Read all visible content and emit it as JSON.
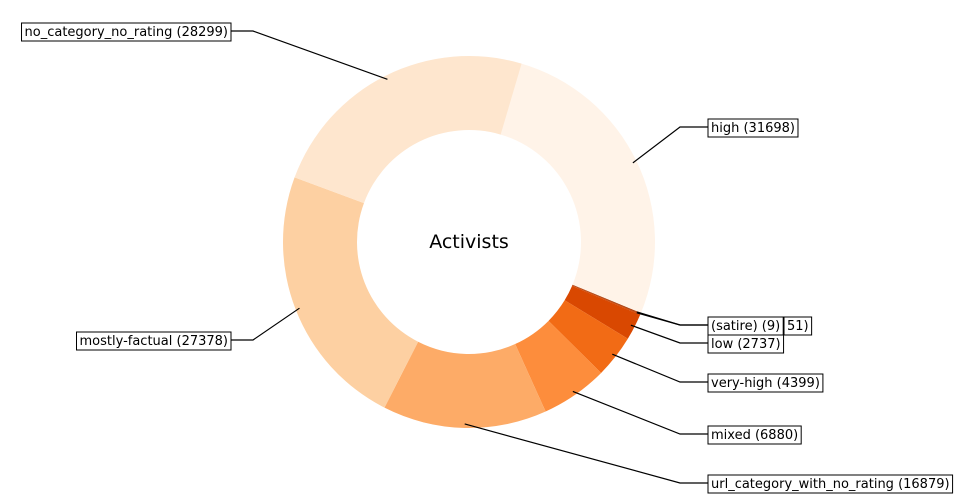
{
  "chart_data": {
    "type": "pie",
    "style": "donut",
    "title": "Activists",
    "slices": [
      {
        "label": "high (31698)",
        "value": 31698,
        "color": "#fff3e8"
      },
      {
        "label": "(satire) (9)",
        "value": 9,
        "color": "#a53603"
      },
      {
        "label": "51)",
        "value": 51,
        "color": "#c44103"
      },
      {
        "label": "low (2737)",
        "value": 2737,
        "color": "#d94801"
      },
      {
        "label": "very-high (4399)",
        "value": 4399,
        "color": "#f26b15"
      },
      {
        "label": "mixed (6880)",
        "value": 6880,
        "color": "#fd8d3c"
      },
      {
        "label": "url_category_with_no_rating (16879)",
        "value": 16879,
        "color": "#fdab67"
      },
      {
        "label": "mostly-factual (27378)",
        "value": 27378,
        "color": "#fdd0a2"
      },
      {
        "label": "no_category_no_rating (28299)",
        "value": 28299,
        "color": "#fee6ce"
      }
    ],
    "start_angle_deg": 74,
    "direction": "clockwise",
    "legend": "none"
  }
}
